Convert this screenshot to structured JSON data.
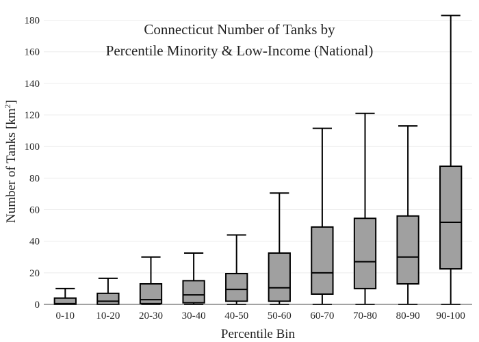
{
  "chart_data": {
    "type": "box",
    "title_lines": [
      "Connecticut Number of Tanks by",
      "Percentile Minority & Low-Income (National)"
    ],
    "xlabel": "Percentile Bin",
    "ylabel": "Number of Tanks  [km",
    "ylabel_superscript": "2",
    "ylabel_suffix": "]",
    "ylim": [
      0,
      185
    ],
    "yticks": [
      0,
      20,
      40,
      60,
      80,
      100,
      120,
      140,
      160,
      180
    ],
    "grid": true,
    "box_color": "#a0a0a0",
    "categories": [
      "0-10",
      "10-20",
      "20-30",
      "30-40",
      "40-50",
      "50-60",
      "60-70",
      "70-80",
      "80-90",
      "90-100"
    ],
    "boxes": [
      {
        "whisker_low": 0,
        "q1": 0,
        "median": 0.5,
        "q3": 4,
        "whisker_high": 10
      },
      {
        "whisker_low": 0,
        "q1": 0,
        "median": 2,
        "q3": 7,
        "whisker_high": 16.5
      },
      {
        "whisker_low": 0,
        "q1": 0.5,
        "median": 3,
        "q3": 13,
        "whisker_high": 30
      },
      {
        "whisker_low": 0,
        "q1": 1,
        "median": 6,
        "q3": 15,
        "whisker_high": 32.5
      },
      {
        "whisker_low": 0,
        "q1": 2,
        "median": 9.5,
        "q3": 19.5,
        "whisker_high": 44
      },
      {
        "whisker_low": 0,
        "q1": 2,
        "median": 10.5,
        "q3": 32.5,
        "whisker_high": 70.5
      },
      {
        "whisker_low": 0,
        "q1": 6.5,
        "median": 20,
        "q3": 49,
        "whisker_high": 111.5
      },
      {
        "whisker_low": 0,
        "q1": 10,
        "median": 27,
        "q3": 54.5,
        "whisker_high": 121
      },
      {
        "whisker_low": 0,
        "q1": 13,
        "median": 30,
        "q3": 56,
        "whisker_high": 113
      },
      {
        "whisker_low": 0,
        "q1": 22.5,
        "median": 52,
        "q3": 87.5,
        "whisker_high": 183
      }
    ]
  }
}
